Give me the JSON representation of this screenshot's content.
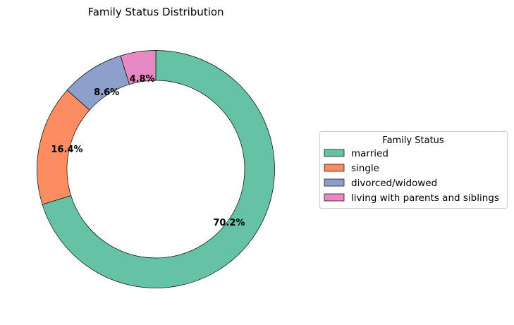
{
  "chart_data": {
    "type": "pie",
    "style": "donut",
    "title": "Family Status Distribution",
    "slices": [
      {
        "label": "married",
        "value": 70.2,
        "display": "70.2%",
        "color": "#66c2a5"
      },
      {
        "label": "single",
        "value": 16.4,
        "display": "16.4%",
        "color": "#fc8d62"
      },
      {
        "label": "divorced/widowed",
        "value": 8.6,
        "display": "8.6%",
        "color": "#8da0cb"
      },
      {
        "label": "living with parents and siblings",
        "value": 4.8,
        "display": "4.8%",
        "color": "#e78ac3"
      }
    ],
    "start_angle_deg": 90,
    "direction": "clockwise",
    "legend": {
      "title": "Family Status",
      "placement": "center-right"
    }
  }
}
